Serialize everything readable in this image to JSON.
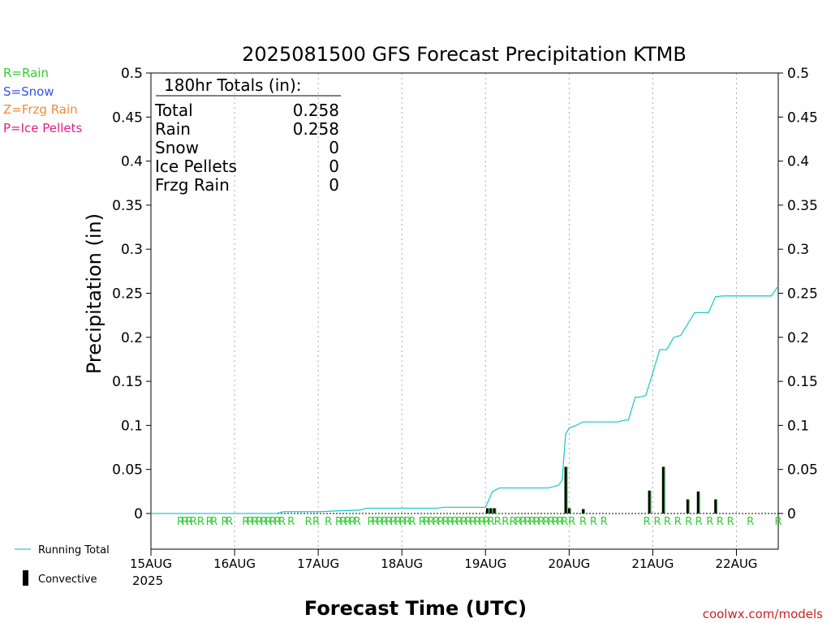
{
  "colors": {
    "rain": "#33cc33",
    "snow": "#3355ee",
    "frzg_rain": "#f08a3a",
    "ice_pellets": "#e0208a",
    "running_total": "#22cccc",
    "convective": "#000000",
    "watermark": "#cc2222"
  },
  "legend_ptype": {
    "rain": "R=Rain",
    "snow": "S=Snow",
    "frzg_rain": "Z=Frzg Rain",
    "ice_pellets": "P=Ice Pellets"
  },
  "legend_series": {
    "running_total": "Running Total",
    "convective": "Convective"
  },
  "totals_box": {
    "header": "180hr Totals (in):",
    "rows": [
      {
        "label": "Total",
        "value": "0.258"
      },
      {
        "label": "Rain",
        "value": "0.258"
      },
      {
        "label": "Snow",
        "value": "0"
      },
      {
        "label": "Ice Pellets",
        "value": "0"
      },
      {
        "label": "Frzg Rain",
        "value": "0"
      }
    ]
  },
  "watermark": "coolwx.com/models",
  "year_label": "2025",
  "chart_data": {
    "type": "line",
    "title": "2025081500 GFS Forecast Precipitation KTMB",
    "xlabel": "Forecast Time (UTC)",
    "ylabel": "Precipitation (in)",
    "ylim": [
      0,
      0.5
    ],
    "xlim_hours": [
      0,
      180
    ],
    "grid": "vertical dotted lines at day ticks",
    "x_tick_hours": [
      0,
      24,
      48,
      72,
      96,
      120,
      144,
      168
    ],
    "x_tick_labels": [
      "15AUG",
      "16AUG",
      "17AUG",
      "18AUG",
      "19AUG",
      "20AUG",
      "21AUG",
      "22AUG"
    ],
    "y_ticks": [
      0,
      0.05,
      0.1,
      0.15,
      0.2,
      0.25,
      0.3,
      0.35,
      0.4,
      0.45,
      0.5
    ],
    "y_tick_labels": [
      "0",
      "0.05",
      "0.1",
      "0.15",
      "0.2",
      "0.25",
      "0.3",
      "0.35",
      "0.4",
      "0.45",
      "0.5"
    ],
    "series": [
      {
        "name": "Running Total",
        "x_hours": [
          0,
          36,
          38,
          42,
          48,
          60,
          62,
          64,
          82,
          84,
          96,
          98,
          100,
          102,
          104,
          106,
          114,
          116,
          117,
          118,
          119,
          120,
          122,
          124,
          134,
          136,
          137,
          139,
          140,
          142,
          146,
          148,
          150,
          152,
          156,
          158,
          160,
          162,
          164,
          166,
          178,
          180
        ],
        "values": [
          0,
          0,
          0.002,
          0.002,
          0.002,
          0.004,
          0.006,
          0.006,
          0.006,
          0.007,
          0.007,
          0.025,
          0.029,
          0.029,
          0.029,
          0.029,
          0.029,
          0.031,
          0.032,
          0.038,
          0.09,
          0.097,
          0.1,
          0.104,
          0.104,
          0.106,
          0.106,
          0.132,
          0.132,
          0.134,
          0.186,
          0.186,
          0.2,
          0.202,
          0.228,
          0.228,
          0.228,
          0.246,
          0.247,
          0.247,
          0.247,
          0.258
        ]
      },
      {
        "name": "Convective",
        "type": "bar",
        "x_hours": [
          96.5,
          97.5,
          98.5,
          119,
          120,
          124,
          143,
          147,
          154,
          157,
          162
        ],
        "values": [
          0.006,
          0.006,
          0.006,
          0.053,
          0.006,
          0.005,
          0.026,
          0.053,
          0.016,
          0.025,
          0.016
        ]
      }
    ],
    "ptype_marks": {
      "symbol": "R",
      "x_hours": [
        8.5,
        9.8,
        11,
        12.2,
        14.3,
        16.8,
        18.1,
        21.2,
        22.5,
        27.2,
        28.5,
        29.8,
        31.1,
        32.4,
        33.7,
        35,
        36.3,
        37.6,
        40.2,
        45.2,
        47.4,
        50.9,
        53.9,
        55.2,
        56.5,
        57.8,
        59.2,
        63.1,
        64.4,
        65.7,
        67,
        68.3,
        69.6,
        70.9,
        72.2,
        73.6,
        75,
        77.8,
        79.1,
        80.4,
        81.8,
        83.2,
        84.6,
        85.9,
        87.2,
        88.5,
        89.8,
        91.1,
        92.4,
        93.7,
        95,
        96.3,
        97.6,
        99.5,
        101.7,
        103.9,
        105.4,
        106.8,
        108.1,
        109.4,
        110.7,
        112,
        113.4,
        114.8,
        116.1,
        117.4,
        118.7,
        120.8,
        124,
        127,
        130,
        142.3,
        145.3,
        148.2,
        151.2,
        154.3,
        157.2,
        160.4,
        163.3,
        166.3,
        172,
        180
      ]
    }
  }
}
